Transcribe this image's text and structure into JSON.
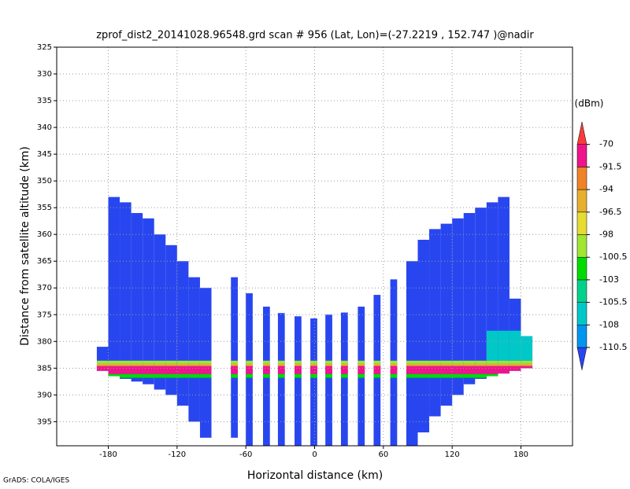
{
  "chart_data": {
    "type": "swath",
    "title": "zprof_dist2_20141028.96548.grd   scan # 956   (Lat, Lon)=(-27.2219 , 152.747 )@nadir",
    "xlabel": "Horizontal distance (km)",
    "ylabel": "Distance from satellite altitude (km)",
    "credit": "GrADS: COLA/IGES",
    "xlim": [
      -225,
      225
    ],
    "xticks": [
      -180,
      -120,
      -60,
      0,
      60,
      120,
      180
    ],
    "ylim": [
      325,
      399.5
    ],
    "yticks": [
      325,
      330,
      335,
      340,
      345,
      350,
      355,
      360,
      365,
      370,
      375,
      380,
      385,
      390,
      395
    ],
    "y_reversed": true,
    "grid": true,
    "colorbar": {
      "label": "(dBm)",
      "levels": [
        -110.5,
        -108,
        -105.5,
        -103,
        -100.5,
        -98,
        -96.5,
        -94,
        -91.5,
        -70
      ],
      "colors": [
        "#2846f0",
        "#0096f0",
        "#00c8c8",
        "#00d28c",
        "#00dc00",
        "#a0e632",
        "#e6dc32",
        "#e6af2d",
        "#f08228",
        "#f0148c",
        "#fa3c3c"
      ]
    },
    "background_value": -112,
    "columns": [
      {
        "x": -185,
        "width": 10,
        "top": 381,
        "bottom": 385.5
      },
      {
        "x": -175,
        "width": 10,
        "top": 353,
        "bottom": 386.5
      },
      {
        "x": -165,
        "width": 10,
        "top": 354,
        "bottom": 387
      },
      {
        "x": -155,
        "width": 10,
        "top": 356,
        "bottom": 387.5
      },
      {
        "x": -145,
        "width": 10,
        "top": 357,
        "bottom": 388
      },
      {
        "x": -135,
        "width": 10,
        "top": 360,
        "bottom": 389
      },
      {
        "x": -125,
        "width": 10,
        "top": 362,
        "bottom": 390
      },
      {
        "x": -115,
        "width": 10,
        "top": 365,
        "bottom": 392
      },
      {
        "x": -105,
        "width": 10,
        "top": 368,
        "bottom": 395
      },
      {
        "x": -95,
        "width": 10,
        "top": 370,
        "bottom": 398
      },
      {
        "x": -70,
        "width": 6,
        "top": 368,
        "bottom": 398
      },
      {
        "x": -57,
        "width": 6,
        "top": 371,
        "bottom": 399.5
      },
      {
        "x": -42,
        "width": 6,
        "top": 373.5,
        "bottom": 399.5
      },
      {
        "x": -29,
        "width": 6,
        "top": 374.7,
        "bottom": 399.5
      },
      {
        "x": -14.5,
        "width": 6,
        "top": 375.3,
        "bottom": 399.5
      },
      {
        "x": -0.7,
        "width": 6,
        "top": 375.7,
        "bottom": 399.5
      },
      {
        "x": 12.4,
        "width": 6,
        "top": 375,
        "bottom": 399.5
      },
      {
        "x": 26,
        "width": 6,
        "top": 374.6,
        "bottom": 399.5
      },
      {
        "x": 40.7,
        "width": 6,
        "top": 373.5,
        "bottom": 399.5
      },
      {
        "x": 54.5,
        "width": 6,
        "top": 371.3,
        "bottom": 399.5
      },
      {
        "x": 69,
        "width": 6,
        "top": 368.4,
        "bottom": 399.5
      },
      {
        "x": 85,
        "width": 10,
        "top": 365,
        "bottom": 399.5
      },
      {
        "x": 95,
        "width": 10,
        "top": 361,
        "bottom": 397
      },
      {
        "x": 105,
        "width": 10,
        "top": 359,
        "bottom": 394
      },
      {
        "x": 115,
        "width": 10,
        "top": 358,
        "bottom": 392
      },
      {
        "x": 125,
        "width": 10,
        "top": 357,
        "bottom": 390
      },
      {
        "x": 135,
        "width": 10,
        "top": 356,
        "bottom": 388
      },
      {
        "x": 145,
        "width": 10,
        "top": 355,
        "bottom": 387
      },
      {
        "x": 155,
        "width": 10,
        "top": 354,
        "bottom": 386.5
      },
      {
        "x": 165,
        "width": 10,
        "top": 353,
        "bottom": 386
      },
      {
        "x": 175,
        "width": 10,
        "top": 372,
        "bottom": 385.5
      },
      {
        "x": 185,
        "width": 10,
        "top": 379,
        "bottom": 385
      }
    ],
    "layers": [
      {
        "x": [
          150,
          190
        ],
        "from": 378,
        "to": 383.6,
        "value": -106
      },
      {
        "x": [
          -190,
          190
        ],
        "from": 383.6,
        "to": 384.2,
        "value": -99
      },
      {
        "x": [
          -190,
          190
        ],
        "from": 384.2,
        "to": 384.6,
        "value": -95
      },
      {
        "x": [
          -190,
          190
        ],
        "from": 384.6,
        "to": 386.1,
        "value": -85
      },
      {
        "x": [
          -190,
          190
        ],
        "from": 386.1,
        "to": 386.8,
        "value": -102
      }
    ]
  }
}
